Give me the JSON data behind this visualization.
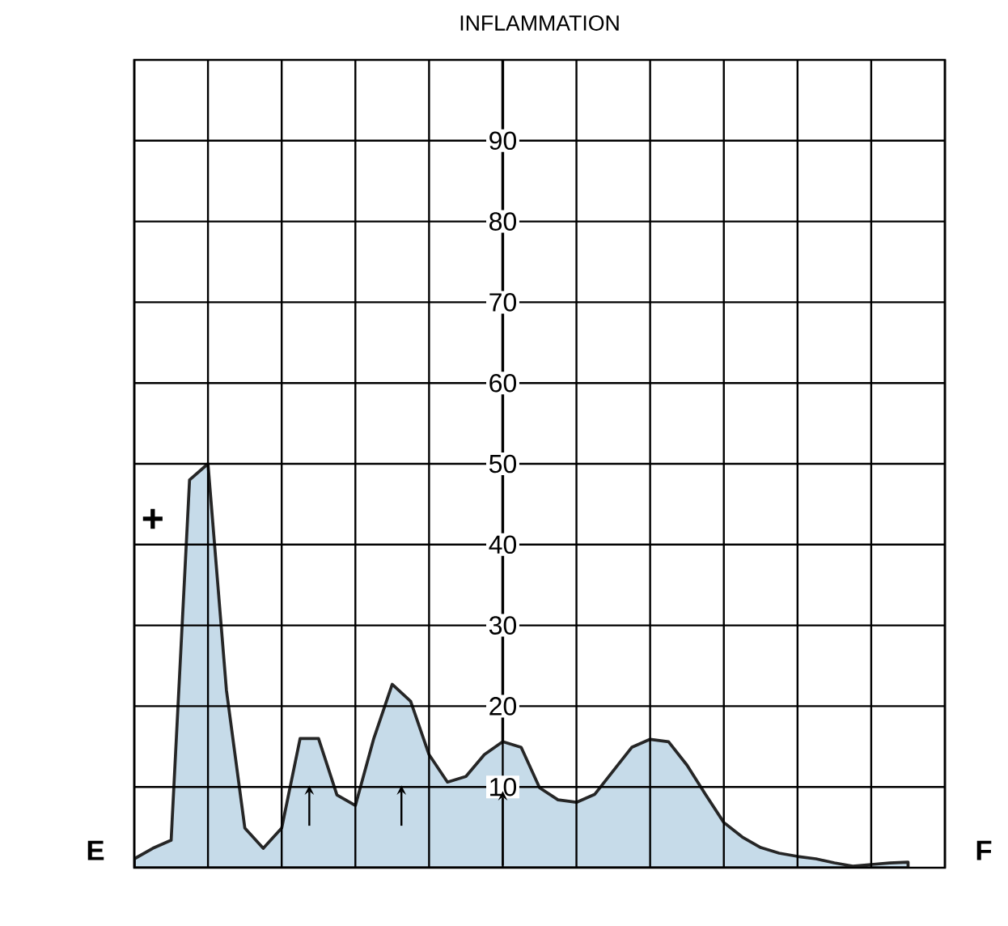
{
  "chart_data": {
    "type": "area",
    "title": "INFLAMMATION",
    "categories": [
      null,
      null,
      null,
      null,
      null,
      null,
      null,
      null,
      null,
      null,
      null,
      null,
      null,
      null,
      null,
      null,
      null,
      null,
      null,
      null,
      null,
      null,
      null,
      null,
      null,
      null,
      null,
      null,
      null,
      null,
      null,
      null,
      null,
      null,
      null,
      null,
      null,
      null,
      null,
      null,
      null,
      null,
      null,
      null,
      null
    ],
    "series": [
      {
        "color": "#c6dbe9",
        "values": [
          1.1,
          2.4,
          3.4,
          48,
          50,
          22,
          4.9,
          2.4,
          4.9,
          16,
          16,
          9,
          7.7,
          16,
          22.7,
          20.6,
          14,
          10.6,
          11.3,
          14,
          15.6,
          14.9,
          9.9,
          8.4,
          8.1,
          9.1,
          12,
          14.9,
          15.9,
          15.6,
          12.7,
          9.1,
          5.6,
          3.8,
          2.5,
          1.8,
          1.4,
          1.1,
          0.6,
          0.2,
          0.4,
          0.6,
          0.7,
          null,
          null
        ]
      }
    ],
    "ylim": [
      0,
      100
    ],
    "yticks": [
      10,
      20,
      30,
      40,
      50,
      60,
      70,
      80,
      90
    ],
    "grid": true,
    "tick_labels": "y",
    "annotations": [
      "E",
      "F",
      "+"
    ]
  }
}
